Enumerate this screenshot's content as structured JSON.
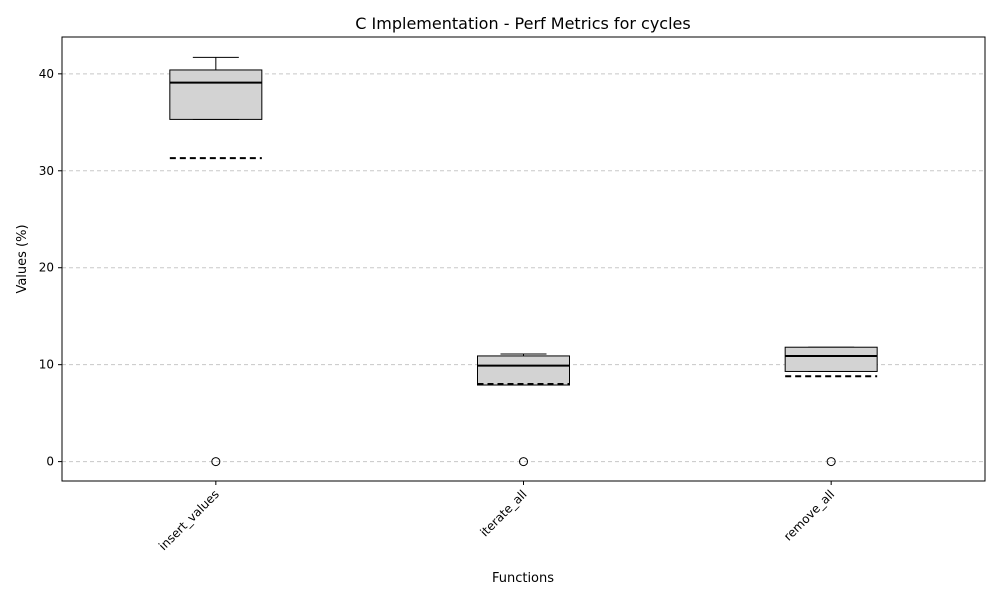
{
  "chart_data": {
    "type": "box",
    "title": "C Implementation - Perf Metrics for cycles",
    "xlabel": "Functions",
    "ylabel": "Values (%)",
    "ylim": [
      -2,
      43.8
    ],
    "yticks": [
      0,
      10,
      20,
      30,
      40
    ],
    "grid": "y-dashed",
    "categories": [
      "insert_values",
      "iterate_all",
      "remove_all"
    ],
    "boxes": [
      {
        "label": "insert_values",
        "whisker_low": 35.3,
        "q1": 35.3,
        "median": 39.1,
        "q3": 40.4,
        "whisker_high": 41.7,
        "mean": 31.3,
        "outliers": [
          0
        ]
      },
      {
        "label": "iterate_all",
        "whisker_low": 7.9,
        "q1": 7.9,
        "median": 9.9,
        "q3": 10.9,
        "whisker_high": 11.1,
        "mean": 8.0,
        "outliers": [
          0
        ]
      },
      {
        "label": "remove_all",
        "whisker_low": 9.3,
        "q1": 9.3,
        "median": 10.9,
        "q3": 11.8,
        "whisker_high": 11.8,
        "mean": 8.8,
        "outliers": [
          0
        ]
      }
    ],
    "colors": {
      "box_fill": "#d3d3d3",
      "box_edge": "#000000",
      "grid": "#c8c8c8"
    }
  }
}
